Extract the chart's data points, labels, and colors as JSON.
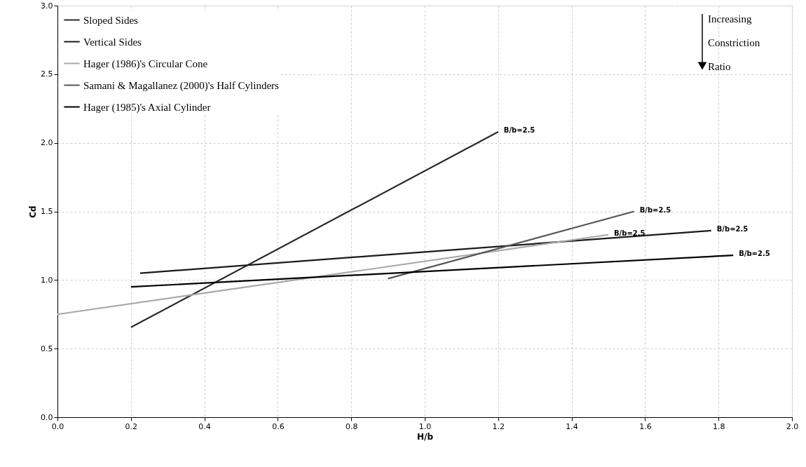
{
  "chart_data": {
    "type": "line",
    "xlabel": "H/b",
    "ylabel": "Cd",
    "series": [
      {
        "name": "Sloped Sides",
        "color": "#2a2a2a",
        "x": [
          0.2,
          1.2
        ],
        "values": [
          0.655,
          2.08
        ]
      },
      {
        "name": "Vertical Sides",
        "color": "#1a1a1a",
        "x": [
          0.225,
          1.78
        ],
        "values": [
          1.05,
          1.36
        ]
      },
      {
        "name": "Hager (1986)'s Circular Cone",
        "color": "#a8a8a8",
        "x": [
          0.0,
          1.5
        ],
        "values": [
          0.75,
          1.33
        ]
      },
      {
        "name": "Samani & Magallanez (2000)'s Half Cylinders",
        "color": "#555555",
        "x": [
          0.9,
          1.57
        ],
        "values": [
          1.01,
          1.5
        ]
      },
      {
        "name": "Hager (1985)'s Axial Cylinder",
        "color": "#000000",
        "x": [
          0.2,
          1.84
        ],
        "values": [
          0.95,
          1.18
        ]
      }
    ],
    "annotations": [
      {
        "text": "B/b=2.5",
        "x": 1.2,
        "y": 2.08
      },
      {
        "text": "B/b=2.5",
        "x": 1.57,
        "y": 1.5
      },
      {
        "text": "B/b=2.5",
        "x": 1.5,
        "y": 1.33
      },
      {
        "text": "B/b=2.5",
        "x": 1.78,
        "y": 1.36
      },
      {
        "text": "B/b=2.5",
        "x": 1.84,
        "y": 1.18
      },
      "Increasing Constriction Ratio"
    ],
    "xlim": [
      0.0,
      2.0
    ],
    "xticks": [
      {
        "value": 0,
        "label": "0.0"
      },
      0.2,
      0.4,
      0.6,
      0.8,
      {
        "value": 1,
        "label": "1.0"
      },
      1.2,
      1.4,
      1.6,
      1.8,
      {
        "value": 2,
        "label": "2.0"
      }
    ],
    "ylim": [
      0.0,
      3.0
    ],
    "yticks": [
      {
        "value": 0,
        "label": "0.0"
      },
      0.5,
      {
        "value": 1,
        "label": "1.0"
      },
      1.5,
      {
        "value": 2,
        "label": "2.0"
      },
      2.5,
      {
        "value": 3,
        "label": "3.0"
      }
    ],
    "grid": true,
    "legend": "top left",
    "marker": "none",
    "line_style": "solid"
  }
}
